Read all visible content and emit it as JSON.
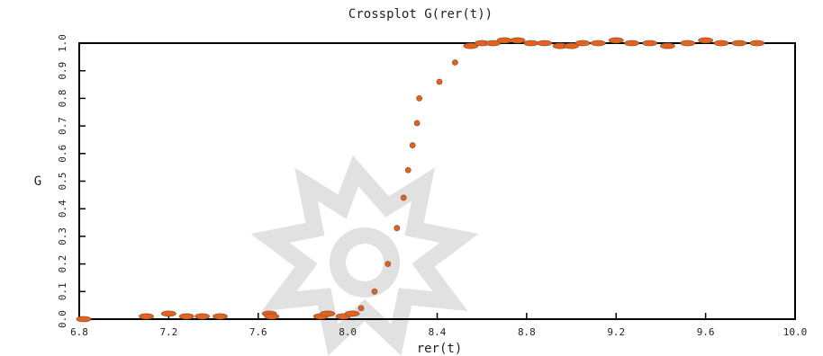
{
  "chart_data": {
    "type": "scatter",
    "title": "Crossplot G(rer(t))",
    "xlabel": "rer(t)",
    "ylabel": "G",
    "xlim": [
      6.8,
      10.0
    ],
    "ylim": [
      0.0,
      1.0
    ],
    "xticks": [
      "6.8",
      "7.2",
      "7.6",
      "8.0",
      "8.4",
      "8.8",
      "9.2",
      "9.6",
      "10.0"
    ],
    "yticks": [
      "0.0",
      "0.1",
      "0.2",
      "0.3",
      "0.4",
      "0.5",
      "0.6",
      "0.7",
      "0.8",
      "0.9",
      "1.0"
    ],
    "grid": false,
    "colors": {
      "points": "#e8611a",
      "outline": "#8a5a3a",
      "axis": "#000000"
    },
    "series": [
      {
        "points": [
          [
            6.82,
            0.0
          ],
          [
            7.1,
            0.01
          ],
          [
            7.2,
            0.02
          ],
          [
            7.28,
            0.01
          ],
          [
            7.35,
            0.01
          ],
          [
            7.43,
            0.01
          ],
          [
            7.65,
            0.02
          ],
          [
            7.66,
            0.01
          ],
          [
            7.88,
            0.01
          ],
          [
            7.91,
            0.02
          ],
          [
            7.98,
            0.01
          ],
          [
            8.02,
            0.02
          ],
          [
            8.06,
            0.04
          ],
          [
            8.12,
            0.1
          ],
          [
            8.18,
            0.2
          ],
          [
            8.22,
            0.33
          ],
          [
            8.25,
            0.44
          ],
          [
            8.27,
            0.54
          ],
          [
            8.29,
            0.63
          ],
          [
            8.31,
            0.71
          ],
          [
            8.32,
            0.8
          ],
          [
            8.41,
            0.86
          ],
          [
            8.48,
            0.93
          ],
          [
            8.55,
            0.99
          ],
          [
            8.6,
            1.0
          ],
          [
            8.65,
            1.0
          ],
          [
            8.7,
            1.01
          ],
          [
            8.76,
            1.01
          ],
          [
            8.82,
            1.0
          ],
          [
            8.88,
            1.0
          ],
          [
            8.95,
            0.99
          ],
          [
            9.0,
            0.99
          ],
          [
            9.05,
            1.0
          ],
          [
            9.12,
            1.0
          ],
          [
            9.2,
            1.01
          ],
          [
            9.27,
            1.0
          ],
          [
            9.35,
            1.0
          ],
          [
            9.43,
            0.99
          ],
          [
            9.52,
            1.0
          ],
          [
            9.6,
            1.01
          ],
          [
            9.67,
            1.0
          ],
          [
            9.75,
            1.0
          ],
          [
            9.83,
            1.0
          ]
        ]
      }
    ]
  }
}
